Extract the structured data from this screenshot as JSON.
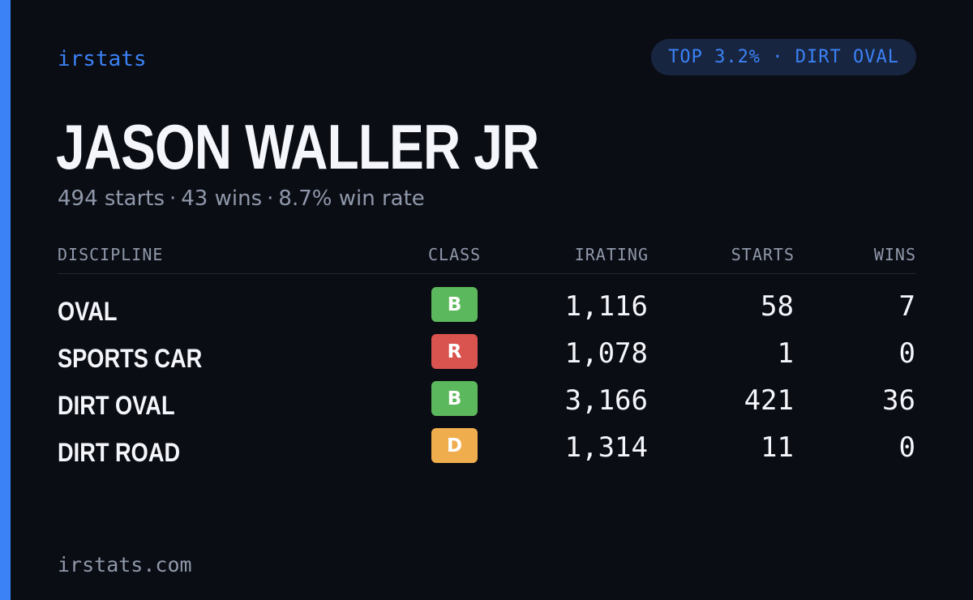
{
  "brand": "irstats",
  "badge": "TOP 3.2% · DIRT OVAL",
  "driver": {
    "name": "JASON WALLER JR",
    "starts_text": "494 starts",
    "wins_text": "43 wins",
    "winrate_text": "8.7% win rate",
    "separator": "·"
  },
  "table": {
    "headers": {
      "discipline": "DISCIPLINE",
      "class": "CLASS",
      "irating": "IRATING",
      "starts": "STARTS",
      "wins": "WINS"
    },
    "rows": [
      {
        "discipline": "OVAL",
        "class": "B",
        "class_color": "#5cb85c",
        "irating": "1,116",
        "starts": "58",
        "wins": "7"
      },
      {
        "discipline": "SPORTS CAR",
        "class": "R",
        "class_color": "#d9534f",
        "irating": "1,078",
        "starts": "1",
        "wins": "0"
      },
      {
        "discipline": "DIRT OVAL",
        "class": "B",
        "class_color": "#5cb85c",
        "irating": "3,166",
        "starts": "421",
        "wins": "36"
      },
      {
        "discipline": "DIRT ROAD",
        "class": "D",
        "class_color": "#f0ad4e",
        "irating": "1,314",
        "starts": "11",
        "wins": "0"
      }
    ]
  },
  "footer": "irstats.com",
  "colors": {
    "accent": "#3b82f6",
    "background": "#0b0d14",
    "text": "#f4f6fb",
    "muted": "#8f98aa"
  }
}
